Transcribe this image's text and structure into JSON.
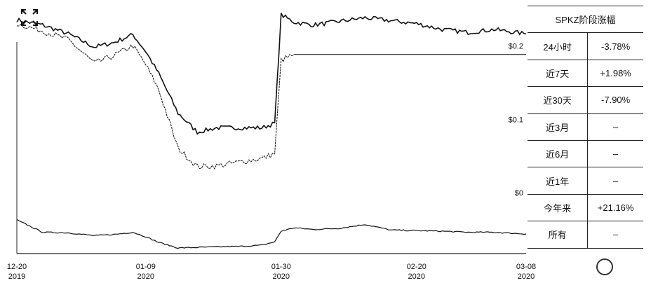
{
  "chart_data": {
    "type": "line",
    "title": "",
    "x_dates": [
      "2019-12-20",
      "2019-12-24",
      "2019-12-28",
      "2020-01-01",
      "2020-01-04",
      "2020-01-07",
      "2020-01-09",
      "2020-01-11",
      "2020-01-14",
      "2020-01-17",
      "2020-01-20",
      "2020-01-24",
      "2020-01-27",
      "2020-01-29",
      "2020-01-30",
      "2020-02-01",
      "2020-02-04",
      "2020-02-08",
      "2020-02-12",
      "2020-02-16",
      "2020-02-20",
      "2020-02-24",
      "2020-02-28",
      "2020-03-03",
      "2020-03-08"
    ],
    "x_tick_labels": [
      {
        "date": "2019-12-20",
        "top": "12-20",
        "bottom": "2019"
      },
      {
        "date": "2020-01-09",
        "top": "01-09",
        "bottom": "2020"
      },
      {
        "date": "2020-01-30",
        "top": "01-30",
        "bottom": "2020"
      },
      {
        "date": "2020-02-20",
        "top": "02-20",
        "bottom": "2020"
      },
      {
        "date": "2020-03-08",
        "top": "03-08",
        "bottom": "2020"
      }
    ],
    "y_ticks": [
      {
        "value": 0,
        "label": "$0"
      },
      {
        "value": 0.1,
        "label": "$0.1"
      },
      {
        "value": 0.2,
        "label": "$0.2"
      }
    ],
    "ylim": [
      0,
      0.255
    ],
    "series": [
      {
        "values": [
          0.245,
          0.238,
          0.226,
          0.208,
          0.214,
          0.225,
          0.202,
          0.172,
          0.118,
          0.092,
          0.098,
          0.098,
          0.098,
          0.104,
          0.252,
          0.242,
          0.238,
          0.243,
          0.248,
          0.244,
          0.24,
          0.232,
          0.228,
          0.232,
          0.226
        ],
        "color": "#111111"
      },
      {
        "values": [
          0.24,
          0.23,
          0.218,
          0.186,
          0.196,
          0.21,
          0.184,
          0.15,
          0.07,
          0.045,
          0.046,
          0.052,
          0.056,
          0.063,
          0.19,
          0.198
        ],
        "color": "#111111"
      }
    ],
    "volume": {
      "values": [
        60,
        38,
        37,
        32,
        34,
        38,
        30,
        20,
        10,
        11,
        12,
        13,
        15,
        21,
        40,
        46,
        43,
        45,
        52,
        42,
        41,
        40,
        38,
        38,
        35
      ],
      "ylim": [
        0,
        100
      ]
    }
  },
  "reference_line": {
    "value": 0.198,
    "from_date": "2020-02-01"
  },
  "side_table": {
    "title": "SPKZ阶段涨幅",
    "rows": [
      {
        "label": "24小时",
        "value": "-3.78%"
      },
      {
        "label": "近7天",
        "value": "+1.98%"
      },
      {
        "label": "近30天",
        "value": "-7.90%"
      },
      {
        "label": "近3月",
        "value": "–"
      },
      {
        "label": "近6月",
        "value": "–"
      },
      {
        "label": "近1年",
        "value": "–"
      },
      {
        "label": "今年来",
        "value": "+21.16%"
      },
      {
        "label": "所有",
        "value": "–"
      }
    ]
  },
  "icons": {
    "expand": "expand-icon"
  }
}
